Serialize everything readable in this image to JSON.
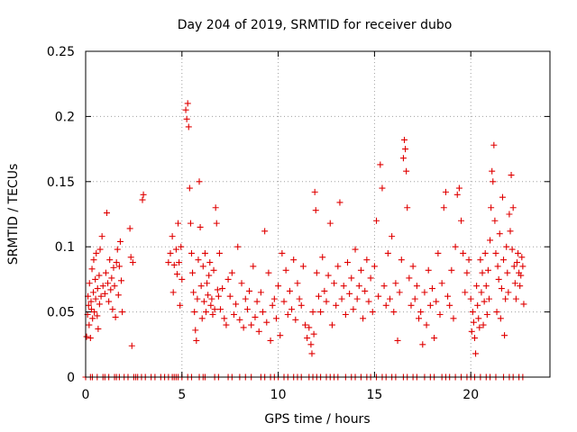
{
  "chart_data": {
    "type": "scatter",
    "title": "Day 204 of 2019, SRMTID for receiver dubo",
    "xlabel": "GPS time / hours",
    "ylabel": "SRMTID / TECUs",
    "xlim": [
      0,
      24
    ],
    "ylim": [
      0,
      0.25
    ],
    "xticks": [
      0,
      5,
      10,
      15,
      20
    ],
    "xtick_labels": [
      "0",
      "5",
      "10",
      "15",
      "20"
    ],
    "yticks": [
      0,
      0.05,
      0.1,
      0.15,
      0.2,
      0.25
    ],
    "ytick_labels": [
      "0",
      "0.05",
      "0.1",
      "0.15",
      "0.2",
      "0.25"
    ],
    "grid": true,
    "marker": "+",
    "color": "#e00000",
    "series": [
      {
        "name": "SRMTID",
        "points": [
          [
            0.05,
            0.031
          ],
          [
            0.1,
            0.048
          ],
          [
            0.12,
            0.062
          ],
          [
            0.15,
            0.055
          ],
          [
            0.18,
            0.04
          ],
          [
            0.2,
            0.072
          ],
          [
            0.25,
            0.03
          ],
          [
            0.28,
            0.058
          ],
          [
            0.3,
            0.052
          ],
          [
            0.33,
            0.083
          ],
          [
            0.36,
            0.045
          ],
          [
            0.4,
            0.065
          ],
          [
            0.42,
            0.09
          ],
          [
            0.45,
            0.05
          ],
          [
            0.5,
            0.075
          ],
          [
            0.52,
            0.06
          ],
          [
            0.55,
            0.095
          ],
          [
            0.6,
            0.047
          ],
          [
            0.62,
            0.068
          ],
          [
            0.65,
            0.037
          ],
          [
            0.7,
            0.078
          ],
          [
            0.72,
            0.056
          ],
          [
            0.75,
            0.098
          ],
          [
            0.8,
            0.062
          ],
          [
            0.85,
            0.108
          ],
          [
            0.9,
            0.07
          ],
          [
            1.0,
            0.064
          ],
          [
            1.05,
            0.08
          ],
          [
            1.1,
            0.126
          ],
          [
            1.15,
            0.072
          ],
          [
            1.2,
            0.058
          ],
          [
            1.25,
            0.09
          ],
          [
            1.3,
            0.067
          ],
          [
            1.35,
            0.076
          ],
          [
            1.4,
            0.052
          ],
          [
            1.45,
            0.084
          ],
          [
            1.5,
            0.07
          ],
          [
            1.55,
            0.046
          ],
          [
            1.6,
            0.088
          ],
          [
            1.65,
            0.098
          ],
          [
            1.7,
            0.063
          ],
          [
            1.75,
            0.085
          ],
          [
            1.8,
            0.104
          ],
          [
            1.85,
            0.074
          ],
          [
            1.9,
            0.05
          ],
          [
            2.3,
            0.114
          ],
          [
            2.35,
            0.092
          ],
          [
            2.4,
            0.024
          ],
          [
            2.45,
            0.088
          ],
          [
            2.95,
            0.136
          ],
          [
            3.0,
            0.14
          ],
          [
            4.3,
            0.088
          ],
          [
            4.4,
            0.095
          ],
          [
            4.5,
            0.108
          ],
          [
            4.55,
            0.065
          ],
          [
            4.6,
            0.086
          ],
          [
            4.7,
            0.098
          ],
          [
            4.75,
            0.079
          ],
          [
            4.8,
            0.118
          ],
          [
            4.85,
            0.088
          ],
          [
            4.9,
            0.055
          ],
          [
            4.95,
            0.1
          ],
          [
            5.0,
            0.075
          ],
          [
            5.2,
            0.205
          ],
          [
            5.25,
            0.198
          ],
          [
            5.3,
            0.21
          ],
          [
            5.35,
            0.192
          ],
          [
            5.4,
            0.145
          ],
          [
            5.45,
            0.118
          ],
          [
            5.5,
            0.095
          ],
          [
            5.55,
            0.08
          ],
          [
            5.6,
            0.065
          ],
          [
            5.65,
            0.05
          ],
          [
            5.7,
            0.036
          ],
          [
            5.75,
            0.028
          ],
          [
            5.8,
            0.06
          ],
          [
            5.85,
            0.09
          ],
          [
            5.9,
            0.15
          ],
          [
            5.95,
            0.115
          ],
          [
            6.0,
            0.07
          ],
          [
            6.05,
            0.045
          ],
          [
            6.1,
            0.085
          ],
          [
            6.15,
            0.058
          ],
          [
            6.2,
            0.095
          ],
          [
            6.25,
            0.05
          ],
          [
            6.3,
            0.072
          ],
          [
            6.35,
            0.063
          ],
          [
            6.4,
            0.078
          ],
          [
            6.45,
            0.088
          ],
          [
            6.5,
            0.055
          ],
          [
            6.55,
            0.06
          ],
          [
            6.6,
            0.048
          ],
          [
            6.65,
            0.082
          ],
          [
            6.7,
            0.052
          ],
          [
            6.75,
            0.13
          ],
          [
            6.8,
            0.118
          ],
          [
            6.85,
            0.067
          ],
          [
            6.9,
            0.062
          ],
          [
            6.95,
            0.095
          ],
          [
            7.0,
            0.052
          ],
          [
            7.1,
            0.068
          ],
          [
            7.2,
            0.045
          ],
          [
            7.3,
            0.04
          ],
          [
            7.4,
            0.075
          ],
          [
            7.5,
            0.062
          ],
          [
            7.6,
            0.08
          ],
          [
            7.7,
            0.048
          ],
          [
            7.8,
            0.056
          ],
          [
            7.9,
            0.1
          ],
          [
            8.0,
            0.044
          ],
          [
            8.1,
            0.072
          ],
          [
            8.2,
            0.038
          ],
          [
            8.3,
            0.06
          ],
          [
            8.4,
            0.052
          ],
          [
            8.5,
            0.066
          ],
          [
            8.6,
            0.04
          ],
          [
            8.7,
            0.085
          ],
          [
            8.8,
            0.046
          ],
          [
            8.9,
            0.058
          ],
          [
            9.0,
            0.035
          ],
          [
            9.1,
            0.065
          ],
          [
            9.2,
            0.05
          ],
          [
            9.3,
            0.112
          ],
          [
            9.4,
            0.042
          ],
          [
            9.5,
            0.08
          ],
          [
            9.6,
            0.028
          ],
          [
            9.7,
            0.055
          ],
          [
            9.8,
            0.06
          ],
          [
            9.9,
            0.045
          ],
          [
            10.0,
            0.07
          ],
          [
            10.1,
            0.032
          ],
          [
            10.2,
            0.095
          ],
          [
            10.3,
            0.058
          ],
          [
            10.4,
            0.082
          ],
          [
            10.5,
            0.048
          ],
          [
            10.6,
            0.066
          ],
          [
            10.7,
            0.052
          ],
          [
            10.8,
            0.09
          ],
          [
            10.9,
            0.044
          ],
          [
            11.0,
            0.072
          ],
          [
            11.1,
            0.06
          ],
          [
            11.2,
            0.055
          ],
          [
            11.3,
            0.085
          ],
          [
            11.4,
            0.04
          ],
          [
            11.5,
            0.03
          ],
          [
            11.6,
            0.038
          ],
          [
            11.7,
            0.025
          ],
          [
            11.75,
            0.018
          ],
          [
            11.8,
            0.05
          ],
          [
            11.85,
            0.033
          ],
          [
            11.9,
            0.142
          ],
          [
            11.95,
            0.128
          ],
          [
            12.0,
            0.08
          ],
          [
            12.1,
            0.062
          ],
          [
            12.2,
            0.05
          ],
          [
            12.3,
            0.092
          ],
          [
            12.4,
            0.066
          ],
          [
            12.5,
            0.058
          ],
          [
            12.6,
            0.078
          ],
          [
            12.7,
            0.118
          ],
          [
            12.8,
            0.04
          ],
          [
            12.9,
            0.072
          ],
          [
            13.0,
            0.055
          ],
          [
            13.1,
            0.085
          ],
          [
            13.2,
            0.134
          ],
          [
            13.3,
            0.06
          ],
          [
            13.4,
            0.07
          ],
          [
            13.5,
            0.048
          ],
          [
            13.6,
            0.088
          ],
          [
            13.7,
            0.064
          ],
          [
            13.8,
            0.076
          ],
          [
            13.9,
            0.052
          ],
          [
            14.0,
            0.098
          ],
          [
            14.1,
            0.06
          ],
          [
            14.2,
            0.07
          ],
          [
            14.3,
            0.082
          ],
          [
            14.4,
            0.045
          ],
          [
            14.5,
            0.066
          ],
          [
            14.6,
            0.09
          ],
          [
            14.7,
            0.058
          ],
          [
            14.8,
            0.076
          ],
          [
            14.9,
            0.05
          ],
          [
            15.0,
            0.085
          ],
          [
            15.1,
            0.12
          ],
          [
            15.2,
            0.062
          ],
          [
            15.3,
            0.163
          ],
          [
            15.4,
            0.145
          ],
          [
            15.5,
            0.07
          ],
          [
            15.6,
            0.055
          ],
          [
            15.7,
            0.095
          ],
          [
            15.8,
            0.06
          ],
          [
            15.9,
            0.108
          ],
          [
            16.0,
            0.05
          ],
          [
            16.1,
            0.072
          ],
          [
            16.2,
            0.028
          ],
          [
            16.3,
            0.065
          ],
          [
            16.4,
            0.09
          ],
          [
            16.5,
            0.168
          ],
          [
            16.55,
            0.182
          ],
          [
            16.6,
            0.175
          ],
          [
            16.65,
            0.158
          ],
          [
            16.7,
            0.13
          ],
          [
            16.8,
            0.076
          ],
          [
            16.9,
            0.055
          ],
          [
            17.0,
            0.085
          ],
          [
            17.1,
            0.06
          ],
          [
            17.2,
            0.07
          ],
          [
            17.3,
            0.045
          ],
          [
            17.4,
            0.05
          ],
          [
            17.5,
            0.025
          ],
          [
            17.6,
            0.065
          ],
          [
            17.7,
            0.04
          ],
          [
            17.8,
            0.082
          ],
          [
            17.9,
            0.055
          ],
          [
            18.0,
            0.068
          ],
          [
            18.1,
            0.03
          ],
          [
            18.2,
            0.058
          ],
          [
            18.3,
            0.095
          ],
          [
            18.4,
            0.048
          ],
          [
            18.5,
            0.072
          ],
          [
            18.6,
            0.13
          ],
          [
            18.7,
            0.142
          ],
          [
            18.8,
            0.062
          ],
          [
            18.9,
            0.055
          ],
          [
            19.0,
            0.082
          ],
          [
            19.1,
            0.045
          ],
          [
            19.2,
            0.1
          ],
          [
            19.3,
            0.14
          ],
          [
            19.4,
            0.145
          ],
          [
            19.5,
            0.12
          ],
          [
            19.6,
            0.095
          ],
          [
            19.7,
            0.065
          ],
          [
            19.8,
            0.08
          ],
          [
            19.9,
            0.09
          ],
          [
            20.0,
            0.06
          ],
          [
            20.05,
            0.035
          ],
          [
            20.1,
            0.05
          ],
          [
            20.15,
            0.042
          ],
          [
            20.2,
            0.03
          ],
          [
            20.25,
            0.018
          ],
          [
            20.3,
            0.07
          ],
          [
            20.35,
            0.055
          ],
          [
            20.4,
            0.045
          ],
          [
            20.45,
            0.038
          ],
          [
            20.5,
            0.09
          ],
          [
            20.55,
            0.065
          ],
          [
            20.6,
            0.08
          ],
          [
            20.65,
            0.04
          ],
          [
            20.7,
            0.058
          ],
          [
            20.75,
            0.095
          ],
          [
            20.8,
            0.07
          ],
          [
            20.85,
            0.048
          ],
          [
            20.9,
            0.082
          ],
          [
            20.95,
            0.06
          ],
          [
            21.0,
            0.105
          ],
          [
            21.05,
            0.13
          ],
          [
            21.1,
            0.158
          ],
          [
            21.15,
            0.15
          ],
          [
            21.2,
            0.178
          ],
          [
            21.25,
            0.12
          ],
          [
            21.3,
            0.095
          ],
          [
            21.35,
            0.05
          ],
          [
            21.4,
            0.085
          ],
          [
            21.45,
            0.075
          ],
          [
            21.5,
            0.11
          ],
          [
            21.55,
            0.045
          ],
          [
            21.6,
            0.068
          ],
          [
            21.65,
            0.138
          ],
          [
            21.7,
            0.09
          ],
          [
            21.75,
            0.032
          ],
          [
            21.8,
            0.06
          ],
          [
            21.85,
            0.1
          ],
          [
            21.9,
            0.08
          ],
          [
            21.95,
            0.065
          ],
          [
            22.0,
            0.125
          ],
          [
            22.05,
            0.112
          ],
          [
            22.1,
            0.155
          ],
          [
            22.15,
            0.098
          ],
          [
            22.2,
            0.13
          ],
          [
            22.25,
            0.085
          ],
          [
            22.3,
            0.072
          ],
          [
            22.35,
            0.06
          ],
          [
            22.4,
            0.088
          ],
          [
            22.45,
            0.095
          ],
          [
            22.5,
            0.08
          ],
          [
            22.55,
            0.07
          ],
          [
            22.6,
            0.078
          ],
          [
            22.65,
            0.092
          ],
          [
            22.7,
            0.085
          ],
          [
            22.75,
            0.056
          ]
        ],
        "zero_points": [
          0.0,
          0.25,
          0.35,
          0.6,
          0.9,
          1.0,
          1.2,
          1.5,
          1.6,
          1.75,
          2.0,
          2.2,
          2.5,
          2.6,
          2.7,
          2.9,
          3.1,
          3.4,
          3.6,
          3.9,
          4.1,
          4.3,
          4.5,
          4.6,
          4.7,
          4.8,
          5.0,
          5.3,
          5.5,
          5.9,
          6.1,
          6.2,
          6.7,
          6.9,
          7.4,
          7.6,
          8.0,
          8.3,
          8.6,
          9.1,
          9.3,
          9.6,
          9.8,
          10.0,
          10.3,
          10.5,
          10.8,
          11.0,
          11.2,
          11.6,
          11.8,
          12.0,
          12.2,
          12.5,
          12.7,
          12.9,
          13.1,
          13.5,
          13.8,
          14.0,
          14.3,
          14.6,
          14.8,
          15.1,
          15.4,
          15.6,
          15.9,
          16.1,
          16.5,
          16.7,
          17.0,
          17.2,
          17.6,
          17.9,
          18.1,
          18.5,
          18.7,
          18.9,
          19.2,
          19.5,
          19.8,
          20.0,
          20.2,
          20.5,
          20.8,
          21.0,
          21.3,
          21.7,
          22.0,
          22.2,
          22.5,
          22.7
        ]
      }
    ]
  }
}
